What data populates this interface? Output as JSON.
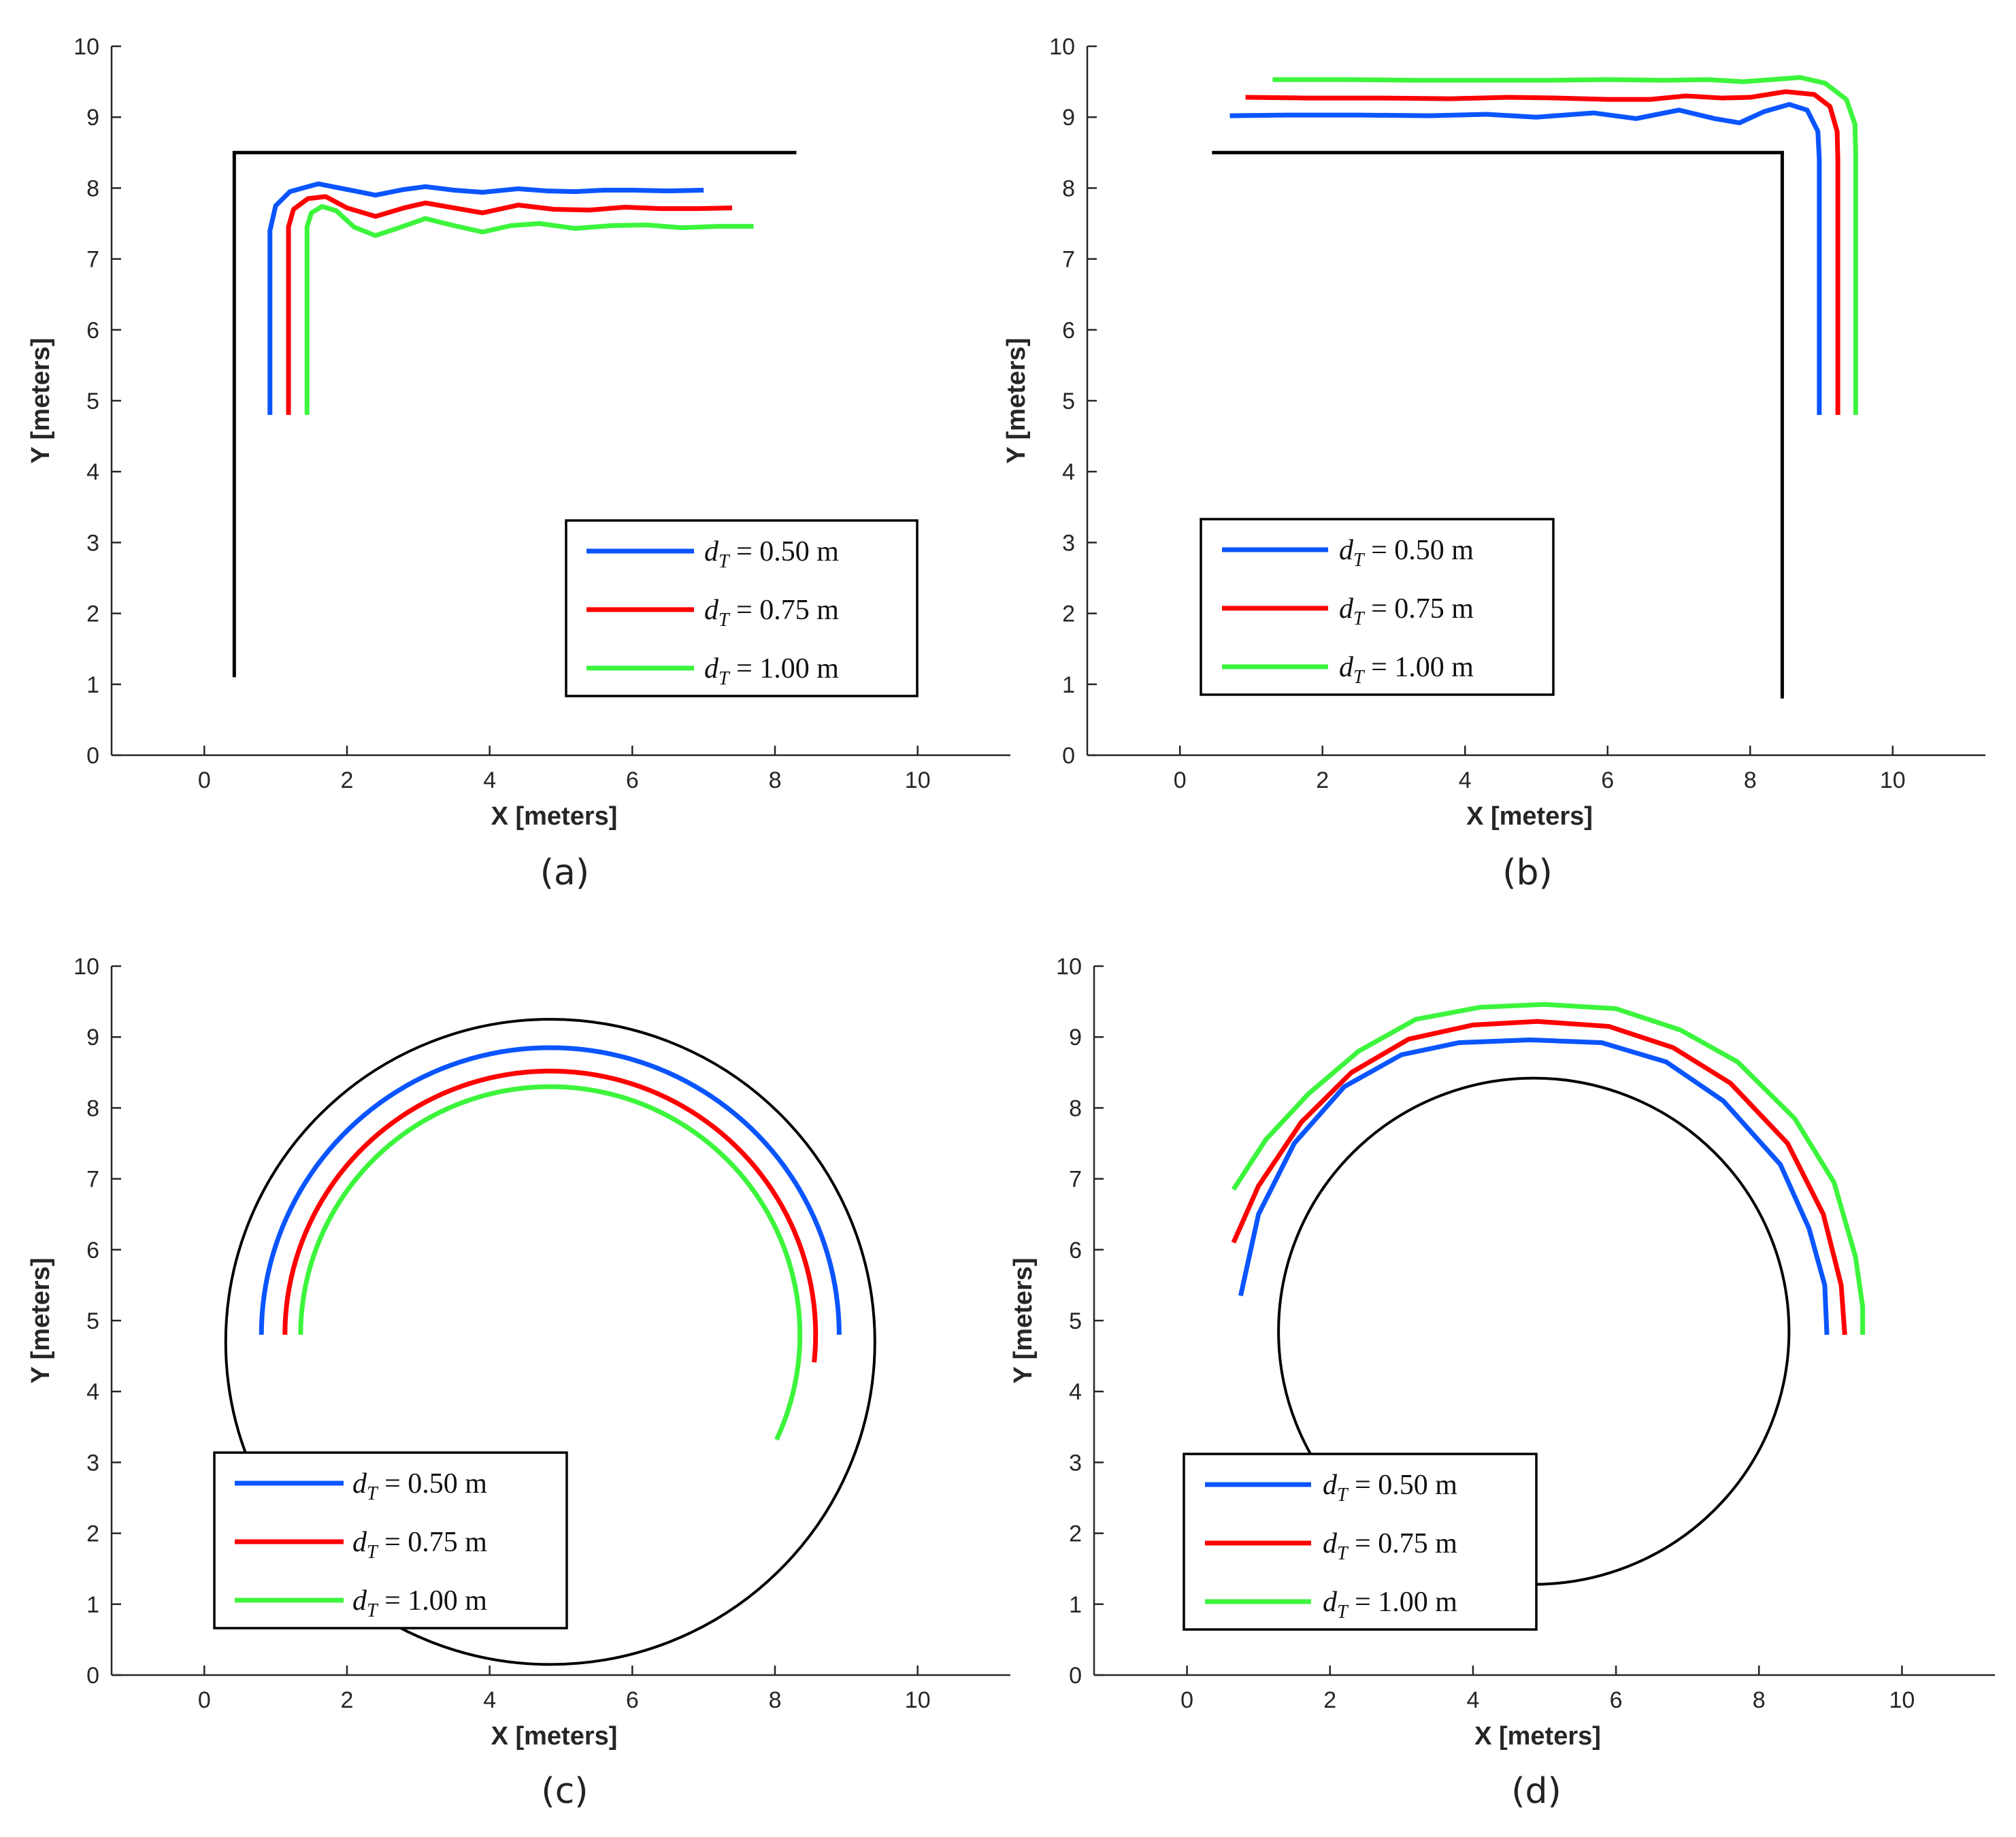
{
  "colors": {
    "blue": "#0a55ff",
    "red": "#ff0000",
    "green": "#3cf53c",
    "wall": "#000000",
    "axis": "#262626"
  },
  "chart_data": [
    {
      "type": "line",
      "caption": "(a)",
      "xlabel": "X [meters]",
      "ylabel": "Y [meters]",
      "xlim": [
        -1.3,
        11.3
      ],
      "ylim": [
        0,
        10
      ],
      "xticks": [
        "0",
        "2",
        "4",
        "6",
        "8",
        "10"
      ],
      "yticks": [
        "0",
        "1",
        "2",
        "3",
        "4",
        "5",
        "6",
        "7",
        "8",
        "9",
        "10"
      ],
      "legend_position": "bottom-right",
      "legend": [
        {
          "name": "d_T = 0.50 m",
          "var": "d",
          "sub": "T",
          "rest": " = 0.50 m",
          "color": "blue"
        },
        {
          "name": "d_T = 0.75 m",
          "var": "d",
          "sub": "T",
          "rest": " = 0.75 m",
          "color": "red"
        },
        {
          "name": "d_T = 1.00 m",
          "var": "d",
          "sub": "T",
          "rest": " = 1.00 m",
          "color": "green"
        }
      ],
      "walls": [
        {
          "type": "polyline",
          "points": [
            [
              0.42,
              1.1
            ],
            [
              0.42,
              8.5
            ],
            [
              8.3,
              8.5
            ]
          ]
        }
      ],
      "series": [
        {
          "name": "d_T = 0.50 m",
          "color": "blue",
          "points": [
            [
              0.92,
              4.8
            ],
            [
              0.92,
              7.4
            ],
            [
              1.0,
              7.75
            ],
            [
              1.2,
              7.95
            ],
            [
              1.6,
              8.06
            ],
            [
              2.0,
              7.98
            ],
            [
              2.4,
              7.9
            ],
            [
              2.8,
              7.98
            ],
            [
              3.1,
              8.02
            ],
            [
              3.5,
              7.97
            ],
            [
              3.9,
              7.94
            ],
            [
              4.4,
              7.99
            ],
            [
              4.8,
              7.96
            ],
            [
              5.2,
              7.95
            ],
            [
              5.6,
              7.97
            ],
            [
              6.0,
              7.97
            ],
            [
              6.5,
              7.96
            ],
            [
              7.0,
              7.97
            ]
          ]
        },
        {
          "name": "d_T = 0.75 m",
          "color": "red",
          "points": [
            [
              1.18,
              4.8
            ],
            [
              1.18,
              7.45
            ],
            [
              1.25,
              7.7
            ],
            [
              1.45,
              7.85
            ],
            [
              1.7,
              7.88
            ],
            [
              2.0,
              7.72
            ],
            [
              2.4,
              7.6
            ],
            [
              2.8,
              7.72
            ],
            [
              3.1,
              7.79
            ],
            [
              3.5,
              7.72
            ],
            [
              3.9,
              7.65
            ],
            [
              4.4,
              7.76
            ],
            [
              4.9,
              7.7
            ],
            [
              5.4,
              7.69
            ],
            [
              5.9,
              7.73
            ],
            [
              6.4,
              7.71
            ],
            [
              6.9,
              7.71
            ],
            [
              7.4,
              7.72
            ]
          ]
        },
        {
          "name": "d_T = 1.00 m",
          "color": "green",
          "points": [
            [
              1.44,
              4.8
            ],
            [
              1.44,
              7.45
            ],
            [
              1.5,
              7.65
            ],
            [
              1.65,
              7.74
            ],
            [
              1.85,
              7.68
            ],
            [
              2.1,
              7.45
            ],
            [
              2.4,
              7.33
            ],
            [
              2.7,
              7.43
            ],
            [
              3.1,
              7.57
            ],
            [
              3.5,
              7.47
            ],
            [
              3.9,
              7.38
            ],
            [
              4.3,
              7.47
            ],
            [
              4.7,
              7.5
            ],
            [
              5.2,
              7.43
            ],
            [
              5.7,
              7.47
            ],
            [
              6.2,
              7.48
            ],
            [
              6.7,
              7.44
            ],
            [
              7.2,
              7.46
            ],
            [
              7.7,
              7.46
            ]
          ]
        }
      ]
    },
    {
      "type": "line",
      "caption": "(b)",
      "xlabel": "X [meters]",
      "ylabel": "Y [meters]",
      "xlim": [
        -1.3,
        11.3
      ],
      "ylim": [
        0,
        10
      ],
      "xticks": [
        "0",
        "2",
        "4",
        "6",
        "8",
        "10"
      ],
      "yticks": [
        "0",
        "1",
        "2",
        "3",
        "4",
        "5",
        "6",
        "7",
        "8",
        "9",
        "10"
      ],
      "legend_position": "bottom-left",
      "legend": [
        {
          "name": "d_T = 0.50 m",
          "var": "d",
          "sub": "T",
          "rest": " = 0.50 m",
          "color": "blue"
        },
        {
          "name": "d_T = 0.75 m",
          "var": "d",
          "sub": "T",
          "rest": " = 0.75 m",
          "color": "red"
        },
        {
          "name": "d_T = 1.00 m",
          "var": "d",
          "sub": "T",
          "rest": " = 1.00 m",
          "color": "green"
        }
      ],
      "walls": [
        {
          "type": "polyline",
          "points": [
            [
              0.45,
              8.5
            ],
            [
              8.45,
              8.5
            ],
            [
              8.45,
              0.8
            ]
          ]
        }
      ],
      "series": [
        {
          "name": "d_T = 0.50 m",
          "color": "blue",
          "points": [
            [
              0.7,
              9.02
            ],
            [
              1.5,
              9.03
            ],
            [
              2.5,
              9.03
            ],
            [
              3.5,
              9.02
            ],
            [
              4.3,
              9.04
            ],
            [
              5.0,
              9.0
            ],
            [
              5.8,
              9.06
            ],
            [
              6.4,
              8.98
            ],
            [
              7.0,
              9.1
            ],
            [
              7.5,
              8.98
            ],
            [
              7.85,
              8.92
            ],
            [
              8.2,
              9.08
            ],
            [
              8.55,
              9.18
            ],
            [
              8.8,
              9.1
            ],
            [
              8.95,
              8.8
            ],
            [
              8.97,
              8.4
            ],
            [
              8.97,
              4.8
            ]
          ]
        },
        {
          "name": "d_T = 0.75 m",
          "color": "red",
          "points": [
            [
              0.92,
              9.28
            ],
            [
              1.8,
              9.27
            ],
            [
              2.8,
              9.27
            ],
            [
              3.8,
              9.26
            ],
            [
              4.6,
              9.28
            ],
            [
              5.3,
              9.27
            ],
            [
              6.0,
              9.25
            ],
            [
              6.6,
              9.25
            ],
            [
              7.1,
              9.3
            ],
            [
              7.6,
              9.27
            ],
            [
              8.0,
              9.28
            ],
            [
              8.5,
              9.36
            ],
            [
              8.9,
              9.32
            ],
            [
              9.12,
              9.15
            ],
            [
              9.22,
              8.8
            ],
            [
              9.23,
              8.4
            ],
            [
              9.23,
              4.8
            ]
          ]
        },
        {
          "name": "d_T = 1.00 m",
          "color": "green",
          "points": [
            [
              1.3,
              9.53
            ],
            [
              2.3,
              9.53
            ],
            [
              3.3,
              9.52
            ],
            [
              4.3,
              9.52
            ],
            [
              5.2,
              9.52
            ],
            [
              6.0,
              9.53
            ],
            [
              6.8,
              9.52
            ],
            [
              7.4,
              9.53
            ],
            [
              7.9,
              9.5
            ],
            [
              8.3,
              9.53
            ],
            [
              8.7,
              9.56
            ],
            [
              9.05,
              9.48
            ],
            [
              9.35,
              9.25
            ],
            [
              9.47,
              8.9
            ],
            [
              9.48,
              8.5
            ],
            [
              9.48,
              4.8
            ]
          ]
        }
      ]
    },
    {
      "type": "line",
      "caption": "(c)",
      "xlabel": "X [meters]",
      "ylabel": "Y [meters]",
      "xlim": [
        -1.3,
        11.3
      ],
      "ylim": [
        0,
        10
      ],
      "xticks": [
        "0",
        "2",
        "4",
        "6",
        "8",
        "10"
      ],
      "yticks": [
        "0",
        "1",
        "2",
        "3",
        "4",
        "5",
        "6",
        "7",
        "8",
        "9",
        "10"
      ],
      "legend_position": "bottom-left",
      "legend": [
        {
          "name": "d_T = 0.50 m",
          "var": "d",
          "sub": "T",
          "rest": " = 0.50 m",
          "color": "blue"
        },
        {
          "name": "d_T = 0.75 m",
          "var": "d",
          "sub": "T",
          "rest": " = 0.75 m",
          "color": "red"
        },
        {
          "name": "d_T = 1.00 m",
          "var": "d",
          "sub": "T",
          "rest": " = 1.00 m",
          "color": "green"
        }
      ],
      "walls": [
        {
          "type": "circle",
          "cx": 4.85,
          "cy": 4.7,
          "r": 4.55
        }
      ],
      "series": [
        {
          "name": "d_T = 0.50 m",
          "color": "blue",
          "arc": {
            "cx": 4.85,
            "cy": 4.8,
            "r": 4.05,
            "startDeg": 180,
            "endDeg": 0
          }
        },
        {
          "name": "d_T = 0.75 m",
          "color": "red",
          "arc": {
            "cx": 4.85,
            "cy": 4.8,
            "r": 3.72,
            "startDeg": 180,
            "endDeg": -6
          }
        },
        {
          "name": "d_T = 1.00 m",
          "color": "green",
          "arc": {
            "cx": 4.85,
            "cy": 4.8,
            "r": 3.5,
            "startDeg": 180,
            "endDeg": -25
          }
        }
      ]
    },
    {
      "type": "line",
      "caption": "(d)",
      "xlabel": "X [meters]",
      "ylabel": "Y [meters]",
      "xlim": [
        -1.3,
        11.3
      ],
      "ylim": [
        0,
        10
      ],
      "xticks": [
        "0",
        "2",
        "4",
        "6",
        "8",
        "10"
      ],
      "yticks": [
        "0",
        "1",
        "2",
        "3",
        "4",
        "5",
        "6",
        "7",
        "8",
        "9",
        "10"
      ],
      "legend_position": "bottom-left",
      "legend": [
        {
          "name": "d_T = 0.50 m",
          "var": "d",
          "sub": "T",
          "rest": " = 0.50 m",
          "color": "blue"
        },
        {
          "name": "d_T = 0.75 m",
          "var": "d",
          "sub": "T",
          "rest": " = 0.75 m",
          "color": "red"
        },
        {
          "name": "d_T = 1.00 m",
          "var": "d",
          "sub": "T",
          "rest": " = 1.00 m",
          "color": "green"
        }
      ],
      "walls": [
        {
          "type": "circle",
          "cx": 4.85,
          "cy": 4.85,
          "r": 3.57
        }
      ],
      "series": [
        {
          "name": "d_T = 0.50 m",
          "color": "blue",
          "points": [
            [
              0.75,
              5.35
            ],
            [
              1.0,
              6.5
            ],
            [
              1.5,
              7.5
            ],
            [
              2.2,
              8.3
            ],
            [
              3.0,
              8.75
            ],
            [
              3.8,
              8.92
            ],
            [
              4.8,
              8.96
            ],
            [
              5.8,
              8.92
            ],
            [
              6.7,
              8.65
            ],
            [
              7.5,
              8.1
            ],
            [
              8.3,
              7.2
            ],
            [
              8.7,
              6.3
            ],
            [
              8.92,
              5.5
            ],
            [
              8.95,
              4.8
            ]
          ]
        },
        {
          "name": "d_T = 0.75 m",
          "color": "red",
          "points": [
            [
              0.65,
              6.1
            ],
            [
              1.0,
              6.9
            ],
            [
              1.6,
              7.8
            ],
            [
              2.3,
              8.5
            ],
            [
              3.1,
              8.97
            ],
            [
              4.0,
              9.17
            ],
            [
              4.9,
              9.22
            ],
            [
              5.9,
              9.15
            ],
            [
              6.8,
              8.85
            ],
            [
              7.6,
              8.35
            ],
            [
              8.4,
              7.5
            ],
            [
              8.9,
              6.5
            ],
            [
              9.15,
              5.5
            ],
            [
              9.2,
              4.8
            ]
          ]
        },
        {
          "name": "d_T = 1.00 m",
          "color": "green",
          "points": [
            [
              0.65,
              6.85
            ],
            [
              1.1,
              7.55
            ],
            [
              1.7,
              8.2
            ],
            [
              2.4,
              8.8
            ],
            [
              3.2,
              9.25
            ],
            [
              4.1,
              9.42
            ],
            [
              5.0,
              9.46
            ],
            [
              6.0,
              9.4
            ],
            [
              6.9,
              9.1
            ],
            [
              7.7,
              8.65
            ],
            [
              8.5,
              7.85
            ],
            [
              9.05,
              6.95
            ],
            [
              9.35,
              5.9
            ],
            [
              9.45,
              5.2
            ],
            [
              9.45,
              4.8
            ]
          ]
        }
      ]
    }
  ]
}
